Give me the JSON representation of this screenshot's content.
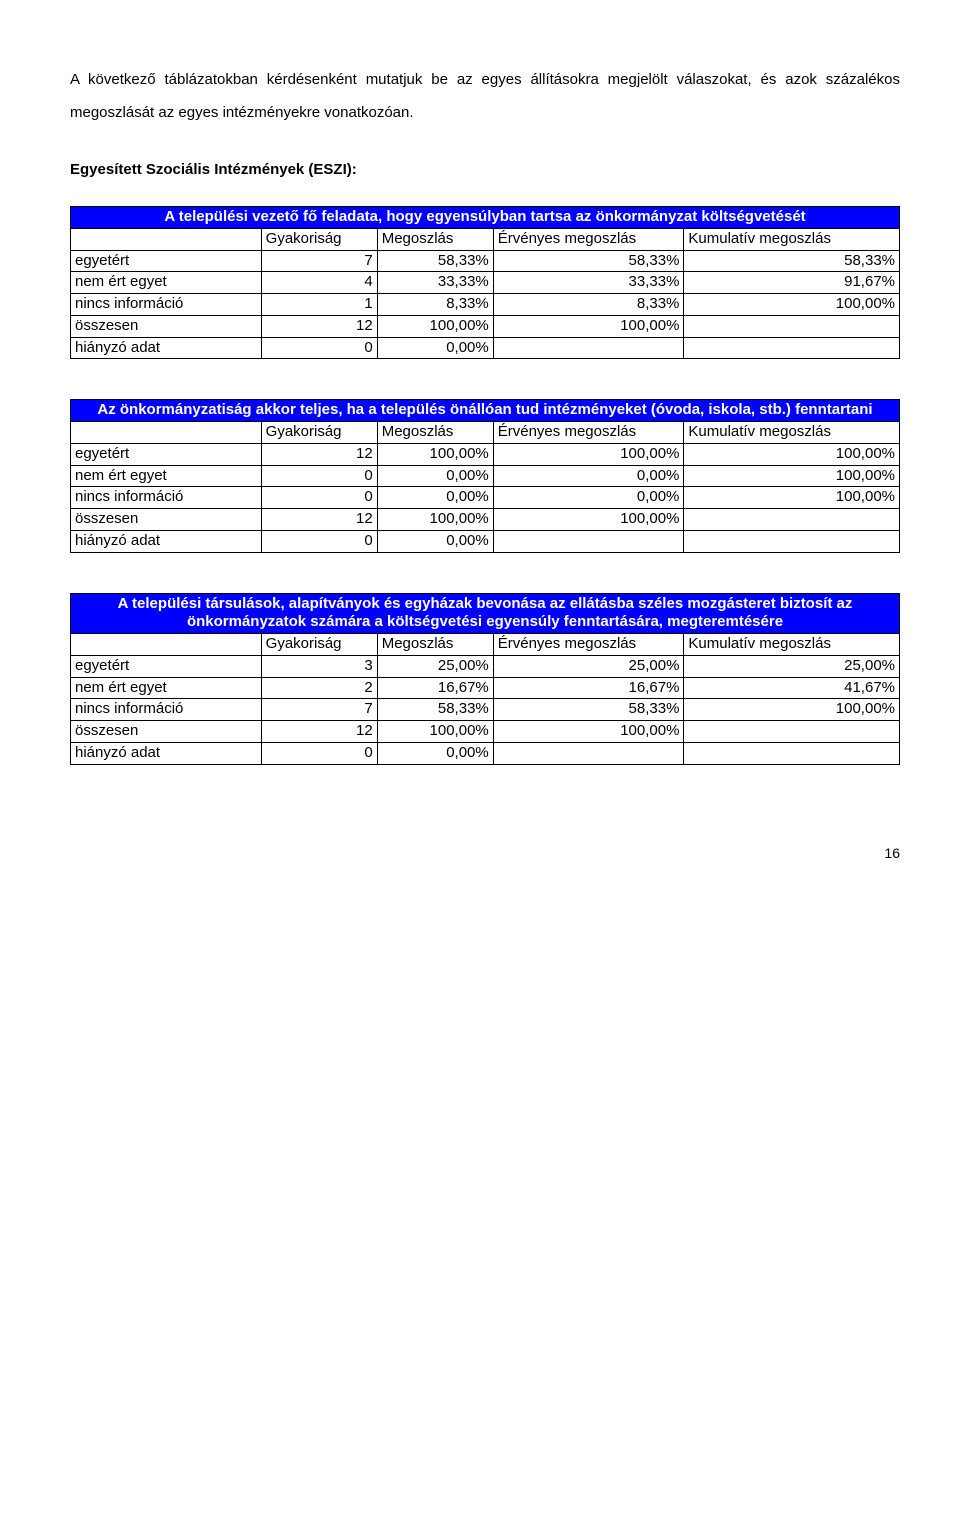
{
  "intro": "A következő táblázatokban kérdésenként mutatjuk be az egyes állításokra megjelölt válaszokat, és azok százalékos megoszlását az egyes intézményekre vonatkozóan.",
  "section_title": "Egyesített Szociális Intézmények (ESZI):",
  "col_headers": {
    "freq": "Gyakoriság",
    "share": "Megoszlás",
    "valid": "Érvényes megoszlás",
    "cum": "Kumulatív megoszlás"
  },
  "row_labels": {
    "agree": "egyetért",
    "disagree": "nem ért egyet",
    "noinfo": "nincs információ",
    "total": "összesen",
    "missing": "hiányzó adat"
  },
  "tables": [
    {
      "title": "A települési vezető fő feladata, hogy egyensúlyban tartsa az önkormányzat költségvetését",
      "rows": {
        "agree": {
          "n": "7",
          "p": "58,33%",
          "v": "58,33%",
          "c": "58,33%"
        },
        "disagree": {
          "n": "4",
          "p": "33,33%",
          "v": "33,33%",
          "c": "91,67%"
        },
        "noinfo": {
          "n": "1",
          "p": "8,33%",
          "v": "8,33%",
          "c": "100,00%"
        },
        "total": {
          "n": "12",
          "p": "100,00%",
          "v": "100,00%",
          "c": ""
        },
        "missing": {
          "n": "0",
          "p": "0,00%",
          "v": "",
          "c": ""
        }
      }
    },
    {
      "title": "Az önkormányzatiság akkor teljes, ha a település önállóan tud intézményeket (óvoda, iskola, stb.) fenntartani",
      "rows": {
        "agree": {
          "n": "12",
          "p": "100,00%",
          "v": "100,00%",
          "c": "100,00%"
        },
        "disagree": {
          "n": "0",
          "p": "0,00%",
          "v": "0,00%",
          "c": "100,00%"
        },
        "noinfo": {
          "n": "0",
          "p": "0,00%",
          "v": "0,00%",
          "c": "100,00%"
        },
        "total": {
          "n": "12",
          "p": "100,00%",
          "v": "100,00%",
          "c": ""
        },
        "missing": {
          "n": "0",
          "p": "0,00%",
          "v": "",
          "c": ""
        }
      }
    },
    {
      "title": "A települési társulások, alapítványok és egyházak bevonása az ellátásba széles mozgásteret biztosít az önkormányzatok számára a költségvetési egyensúly fenntartására, megteremtésére",
      "rows": {
        "agree": {
          "n": "3",
          "p": "25,00%",
          "v": "25,00%",
          "c": "25,00%"
        },
        "disagree": {
          "n": "2",
          "p": "16,67%",
          "v": "16,67%",
          "c": "41,67%"
        },
        "noinfo": {
          "n": "7",
          "p": "58,33%",
          "v": "58,33%",
          "c": "100,00%"
        },
        "total": {
          "n": "12",
          "p": "100,00%",
          "v": "100,00%",
          "c": ""
        },
        "missing": {
          "n": "0",
          "p": "0,00%",
          "v": "",
          "c": ""
        }
      }
    }
  ],
  "page_number": "16"
}
